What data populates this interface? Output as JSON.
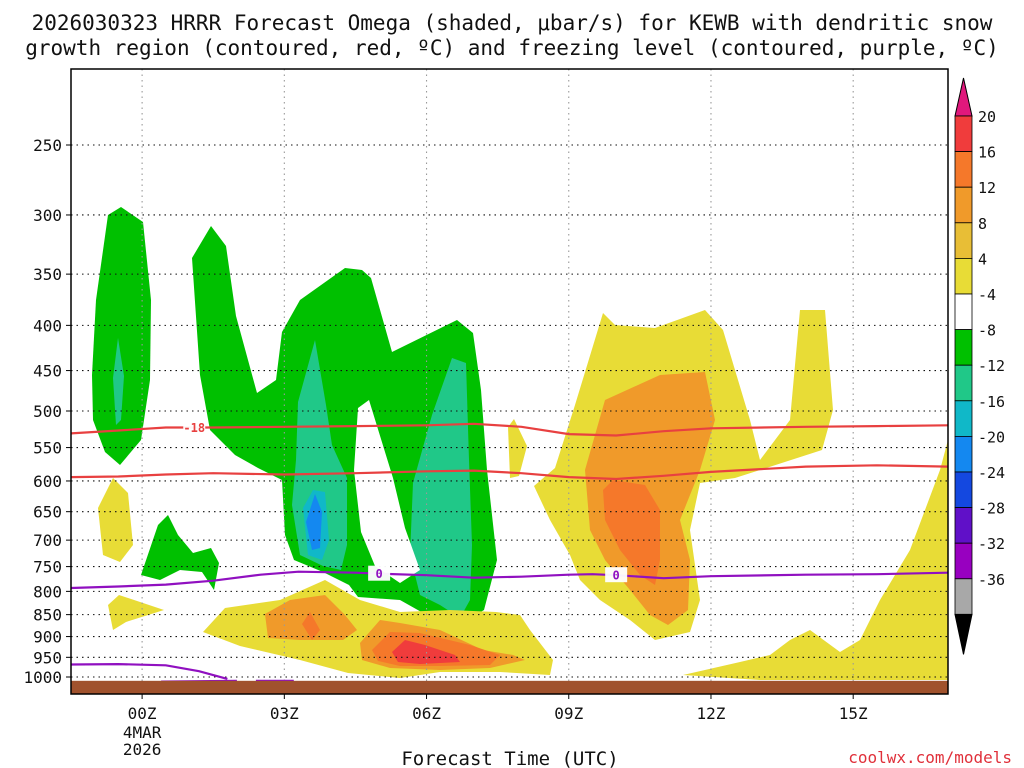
{
  "title_lines": [
    "2026030323 HRRR Forecast Omega (shaded, μbar/s) for KEWB with dendritic snow",
    "growth region (contoured, red, ºC) and freezing level (contoured, purple, ºC)"
  ],
  "credit": "coolwx.com/models",
  "chart_data": {
    "type": "time-height cross section",
    "title": "2026030323 HRRR Forecast Omega (shaded, μbar/s) for KEWB with dendritic snow growth region (contoured, red, ºC) and freezing level (contoured, purple, ºC)",
    "xlabel": "Forecast Time (UTC)",
    "ylabel": "",
    "x_range_hours": [
      -1.5,
      17
    ],
    "y_range_hpa": [
      1020,
      200
    ],
    "y_scale": "log-pressure",
    "grid": true,
    "x_ticks": [
      {
        "hour": 0,
        "label": "00Z",
        "sub": [
          "4MAR",
          "2026"
        ]
      },
      {
        "hour": 3,
        "label": "03Z",
        "sub": []
      },
      {
        "hour": 6,
        "label": "06Z",
        "sub": []
      },
      {
        "hour": 9,
        "label": "09Z",
        "sub": []
      },
      {
        "hour": 12,
        "label": "12Z",
        "sub": []
      },
      {
        "hour": 15,
        "label": "15Z",
        "sub": []
      }
    ],
    "y_ticks": [
      250,
      300,
      350,
      400,
      450,
      500,
      550,
      600,
      650,
      700,
      750,
      800,
      850,
      900,
      950,
      1000
    ],
    "colorbar": {
      "labels": [
        "20",
        "16",
        "12",
        "8",
        "4",
        "-4",
        "-8",
        "-12",
        "-16",
        "-20",
        "-24",
        "-28",
        "-32",
        "-36"
      ],
      "colors": [
        "#f03c3c",
        "#f5782a",
        "#f09a2a",
        "#e8be36",
        "#e8dc36",
        "#ffffff",
        "#00c000",
        "#20c888",
        "#10b8c8",
        "#1488f0",
        "#1448e0",
        "#6010c8",
        "#9800c0",
        "#a8a8a8"
      ],
      "top_arrow_color": "#e0187c",
      "bottom_arrow_color": "#000000"
    },
    "contours": [
      {
        "name": "-18 ºC",
        "color": "#e84040",
        "label": "-18",
        "points": [
          [
            -1.5,
            530
          ],
          [
            -0.5,
            526
          ],
          [
            0.5,
            522
          ],
          [
            1.5,
            522
          ],
          [
            3,
            521
          ],
          [
            4.5,
            520
          ],
          [
            6,
            519
          ],
          [
            7,
            517
          ],
          [
            8,
            521
          ],
          [
            9,
            531
          ],
          [
            10,
            533
          ],
          [
            11,
            527
          ],
          [
            12,
            523
          ],
          [
            14,
            521
          ],
          [
            15.5,
            520
          ],
          [
            17,
            519
          ]
        ]
      },
      {
        "name": "dgz-lower",
        "color": "#e84040",
        "label": "",
        "points": [
          [
            -1.5,
            594
          ],
          [
            -0.5,
            593
          ],
          [
            0.5,
            590
          ],
          [
            1.5,
            588
          ],
          [
            3,
            590
          ],
          [
            4.5,
            588
          ],
          [
            6,
            585
          ],
          [
            7,
            584
          ],
          [
            8,
            588
          ],
          [
            9,
            594
          ],
          [
            10,
            597
          ],
          [
            11,
            592
          ],
          [
            12,
            586
          ],
          [
            14,
            578
          ],
          [
            15.5,
            576
          ],
          [
            17,
            578
          ]
        ]
      },
      {
        "name": "0 ºC",
        "color": "#9010c0",
        "label": "0",
        "points": [
          [
            -1.5,
            793
          ],
          [
            -0.5,
            790
          ],
          [
            0.5,
            786
          ],
          [
            1.5,
            778
          ],
          [
            2.5,
            766
          ],
          [
            3.3,
            760
          ],
          [
            4.5,
            762
          ],
          [
            5,
            764
          ],
          [
            6,
            767
          ],
          [
            7,
            772
          ],
          [
            8,
            770
          ],
          [
            9,
            766
          ],
          [
            9.5,
            765
          ],
          [
            10,
            767
          ],
          [
            11,
            773
          ],
          [
            12,
            769
          ],
          [
            14,
            766
          ],
          [
            15.5,
            765
          ],
          [
            17,
            762
          ]
        ]
      },
      {
        "name": "sfc-freezing-1",
        "color": "#9010c0",
        "label": "",
        "points": [
          [
            -1.5,
            968
          ],
          [
            -0.5,
            967
          ],
          [
            0.5,
            970
          ],
          [
            1.2,
            985
          ],
          [
            1.8,
            1005
          ]
        ]
      },
      {
        "name": "sfc-freezing-2",
        "color": "#9010c0",
        "label": "",
        "points": [
          [
            0.4,
            1012
          ],
          [
            1.2,
            1011
          ],
          [
            2,
            1010
          ]
        ]
      },
      {
        "name": "sfc-freezing-3",
        "color": "#9010c0",
        "label": "",
        "points": [
          [
            2.4,
            1010
          ],
          [
            3.2,
            1010
          ]
        ]
      }
    ],
    "ground": {
      "color": "#a0522d",
      "top_hpa": 1010
    }
  }
}
